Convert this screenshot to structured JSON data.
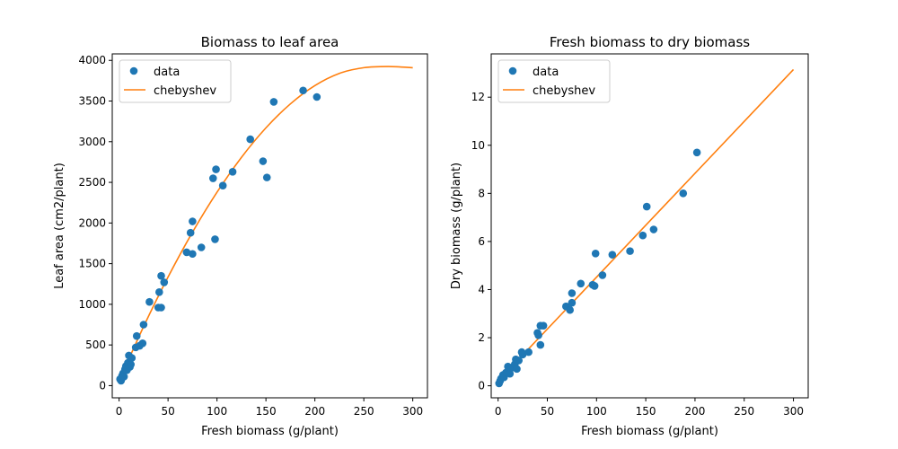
{
  "chart_data": [
    {
      "type": "scatter",
      "title": "Biomass to leaf area",
      "xlabel": "Fresh biomass (g/plant)",
      "ylabel": "Leaf area (cm2/plant)",
      "xlim": [
        -7,
        315
      ],
      "ylim": [
        -150,
        4080
      ],
      "xticks": [
        0,
        50,
        100,
        150,
        200,
        250,
        300
      ],
      "yticks": [
        0,
        500,
        1000,
        1500,
        2000,
        2500,
        3000,
        3500,
        4000
      ],
      "legend": {
        "placement": "top-left",
        "entries": [
          "data",
          "chebyshev"
        ]
      },
      "colors": {
        "data": "#1f77b4",
        "fit": "#ff7f0e"
      },
      "series": [
        {
          "name": "data",
          "kind": "points",
          "points": [
            [
              1,
              80
            ],
            [
              2,
              60
            ],
            [
              3,
              120
            ],
            [
              4,
              150
            ],
            [
              5,
              110
            ],
            [
              6,
              200
            ],
            [
              7,
              240
            ],
            [
              8,
              190
            ],
            [
              9,
              280
            ],
            [
              10,
              370
            ],
            [
              11,
              230
            ],
            [
              12,
              260
            ],
            [
              13,
              340
            ],
            [
              17,
              470
            ],
            [
              18,
              610
            ],
            [
              21,
              490
            ],
            [
              24,
              520
            ],
            [
              25,
              750
            ],
            [
              31,
              1030
            ],
            [
              40,
              960
            ],
            [
              41,
              1150
            ],
            [
              43,
              960
            ],
            [
              43,
              1350
            ],
            [
              46,
              1270
            ],
            [
              69,
              1640
            ],
            [
              73,
              1880
            ],
            [
              75,
              2020
            ],
            [
              75,
              1620
            ],
            [
              84,
              1700
            ],
            [
              96,
              2550
            ],
            [
              98,
              1800
            ],
            [
              99,
              2660
            ],
            [
              106,
              2460
            ],
            [
              116,
              2630
            ],
            [
              134,
              3030
            ],
            [
              147,
              2760
            ],
            [
              151,
              2560
            ],
            [
              158,
              3490
            ],
            [
              188,
              3630
            ],
            [
              202,
              3550
            ]
          ]
        },
        {
          "name": "chebyshev",
          "kind": "line",
          "points": [
            [
              0,
              60
            ],
            [
              25,
              725
            ],
            [
              50,
              1335
            ],
            [
              75,
              1887
            ],
            [
              100,
              2378
            ],
            [
              125,
              2807
            ],
            [
              150,
              3170
            ],
            [
              175,
              3465
            ],
            [
              200,
              3690
            ],
            [
              225,
              3840
            ],
            [
              250,
              3910
            ],
            [
              275,
              3925
            ],
            [
              300,
              3910
            ]
          ]
        }
      ]
    },
    {
      "type": "scatter",
      "title": "Fresh biomass to dry biomass",
      "xlabel": "Fresh biomass (g/plant)",
      "ylabel": "Dry biomass (g/plant)",
      "xlim": [
        -7,
        315
      ],
      "ylim": [
        -0.5,
        13.8
      ],
      "xticks": [
        0,
        50,
        100,
        150,
        200,
        250,
        300
      ],
      "yticks": [
        0,
        2,
        4,
        6,
        8,
        10,
        12
      ],
      "legend": {
        "placement": "top-left",
        "entries": [
          "data",
          "chebyshev"
        ]
      },
      "colors": {
        "data": "#1f77b4",
        "fit": "#ff7f0e"
      },
      "series": [
        {
          "name": "data",
          "kind": "points",
          "points": [
            [
              1,
              0.1
            ],
            [
              2,
              0.2
            ],
            [
              3,
              0.3
            ],
            [
              5,
              0.45
            ],
            [
              6,
              0.35
            ],
            [
              8,
              0.55
            ],
            [
              10,
              0.8
            ],
            [
              12,
              0.5
            ],
            [
              14,
              0.75
            ],
            [
              17,
              0.9
            ],
            [
              18,
              1.1
            ],
            [
              19,
              0.7
            ],
            [
              21,
              1.05
            ],
            [
              24,
              1.4
            ],
            [
              25,
              1.3
            ],
            [
              31,
              1.4
            ],
            [
              40,
              2.2
            ],
            [
              41,
              2.1
            ],
            [
              43,
              2.5
            ],
            [
              43,
              1.7
            ],
            [
              46,
              2.5
            ],
            [
              69,
              3.3
            ],
            [
              73,
              3.15
            ],
            [
              75,
              3.45
            ],
            [
              75,
              3.85
            ],
            [
              84,
              4.25
            ],
            [
              96,
              4.2
            ],
            [
              98,
              4.15
            ],
            [
              99,
              5.5
            ],
            [
              106,
              4.6
            ],
            [
              116,
              5.45
            ],
            [
              134,
              5.6
            ],
            [
              147,
              6.25
            ],
            [
              151,
              7.45
            ],
            [
              158,
              6.5
            ],
            [
              188,
              8.0
            ],
            [
              202,
              9.7
            ]
          ]
        },
        {
          "name": "chebyshev",
          "kind": "line",
          "points": [
            [
              0,
              0.2
            ],
            [
              300,
              13.15
            ]
          ]
        }
      ]
    }
  ]
}
